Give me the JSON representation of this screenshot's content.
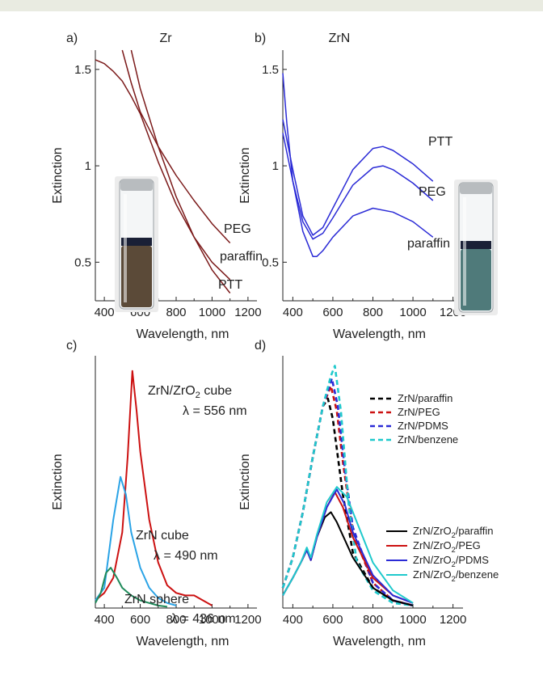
{
  "colors": {
    "frame_top": "#e9ebe1",
    "darkred": "#7b1a1a",
    "blue": "#2b2bd6",
    "red": "#cc1111",
    "lightblue": "#2aa3e6",
    "green": "#1f8a5a",
    "black": "#000000",
    "cyan": "#1fc9cc",
    "vial_brown": "#5b4a38",
    "vial_teal": "#4f7a7a"
  },
  "chart_data": [
    {
      "panel": "a)",
      "type": "line",
      "title": "Zr",
      "xlabel": "Wavelength, nm",
      "ylabel": "Extinction",
      "xlim": [
        350,
        1250
      ],
      "ylim": [
        0.3,
        1.6
      ],
      "xticks": [
        "400",
        "600",
        "800",
        "1000",
        "1200"
      ],
      "xtick_values": [
        400,
        600,
        800,
        1000,
        1200
      ],
      "yticks": [
        "0.5",
        "1",
        "1.5"
      ],
      "ytick_values": [
        0.5,
        1.0,
        1.5
      ],
      "inset": "vial-photo-brown",
      "series": [
        {
          "name": "PEG",
          "color": "#7b1a1a",
          "x": [
            500,
            550,
            600,
            700,
            800,
            900,
            1000,
            1100
          ],
          "y": [
            1.6,
            1.43,
            1.28,
            1.1,
            0.95,
            0.82,
            0.7,
            0.6
          ]
        },
        {
          "name": "paraffin",
          "color": "#7b1a1a",
          "x": [
            350,
            400,
            450,
            500,
            550,
            600,
            700,
            800,
            900,
            1000,
            1100
          ],
          "y": [
            1.55,
            1.53,
            1.49,
            1.44,
            1.36,
            1.27,
            1.02,
            0.8,
            0.63,
            0.5,
            0.41
          ]
        },
        {
          "name": "PTT",
          "color": "#7b1a1a",
          "x": [
            550,
            600,
            700,
            800,
            900,
            1000,
            1100
          ],
          "y": [
            1.6,
            1.4,
            1.1,
            0.84,
            0.63,
            0.46,
            0.34
          ]
        }
      ]
    },
    {
      "panel": "b)",
      "type": "line",
      "title": "ZrN",
      "xlabel": "Wavelength, nm",
      "ylabel": "Extinction",
      "xlim": [
        350,
        1250
      ],
      "ylim": [
        0.3,
        1.6
      ],
      "xticks": [
        "400",
        "600",
        "800",
        "1000",
        "1200"
      ],
      "xtick_values": [
        400,
        600,
        800,
        1000,
        1200
      ],
      "yticks": [
        "0.5",
        "1",
        "1.5"
      ],
      "ytick_values": [
        0.5,
        1.0,
        1.5
      ],
      "inset": "vial-photo-teal",
      "series": [
        {
          "name": "PTT",
          "color": "#2b2bd6",
          "x": [
            350,
            400,
            450,
            500,
            550,
            600,
            700,
            800,
            850,
            900,
            1000,
            1100
          ],
          "y": [
            1.24,
            0.98,
            0.74,
            0.64,
            0.68,
            0.78,
            0.98,
            1.09,
            1.1,
            1.08,
            1.01,
            0.92
          ]
        },
        {
          "name": "PEG",
          "color": "#2b2bd6",
          "x": [
            350,
            400,
            450,
            500,
            550,
            600,
            700,
            800,
            850,
            900,
            1000,
            1100
          ],
          "y": [
            1.17,
            0.92,
            0.71,
            0.62,
            0.65,
            0.73,
            0.9,
            0.99,
            1.0,
            0.98,
            0.91,
            0.82
          ]
        },
        {
          "name": "paraffin",
          "color": "#2b2bd6",
          "x": [
            350,
            370,
            400,
            450,
            500,
            520,
            550,
            600,
            700,
            800,
            900,
            1000,
            1100
          ],
          "y": [
            1.48,
            1.22,
            0.92,
            0.66,
            0.53,
            0.53,
            0.56,
            0.63,
            0.74,
            0.78,
            0.76,
            0.71,
            0.63
          ]
        }
      ]
    },
    {
      "panel": "c)",
      "type": "line",
      "xlabel": "Wavelength, nm",
      "ylabel": "Extinction",
      "xlim": [
        350,
        1250
      ],
      "ylim": [
        0,
        1.0
      ],
      "xticks": [
        "400",
        "600",
        "800",
        "1000",
        "1200"
      ],
      "xtick_values": [
        400,
        600,
        800,
        1000,
        1200
      ],
      "annotations": [
        {
          "text": "ZrN/ZrO",
          "sub": "2",
          "after": " cube"
        },
        {
          "text": "λ = 556 nm"
        },
        {
          "text": "ZrN cube"
        },
        {
          "text": "λ = 490 nm"
        },
        {
          "text": "ZrN sphere"
        },
        {
          "text": "λ = 436 nm"
        }
      ],
      "series": [
        {
          "color": "#cc1111",
          "x": [
            350,
            400,
            450,
            500,
            530,
            556,
            580,
            600,
            650,
            700,
            750,
            800,
            850,
            900,
            950,
            1000
          ],
          "y": [
            0.03,
            0.06,
            0.12,
            0.3,
            0.6,
            0.94,
            0.78,
            0.62,
            0.35,
            0.18,
            0.09,
            0.06,
            0.05,
            0.05,
            0.03,
            0.01
          ]
        },
        {
          "color": "#2aa3e6",
          "x": [
            350,
            400,
            450,
            490,
            520,
            550,
            600,
            650,
            700,
            750,
            800
          ],
          "y": [
            0.03,
            0.08,
            0.35,
            0.52,
            0.45,
            0.3,
            0.16,
            0.08,
            0.04,
            0.02,
            0.01
          ]
        },
        {
          "color": "#1f8a5a",
          "x": [
            350,
            380,
            410,
            436,
            470,
            500,
            550,
            600,
            650,
            700,
            750
          ],
          "y": [
            0.02,
            0.06,
            0.14,
            0.16,
            0.12,
            0.08,
            0.05,
            0.03,
            0.02,
            0.01,
            0.005
          ]
        }
      ]
    },
    {
      "panel": "d)",
      "type": "line",
      "xlabel": "Wavelength, nm",
      "ylabel": "Extinction",
      "xlim": [
        350,
        1250
      ],
      "ylim": [
        0,
        1.0
      ],
      "xticks": [
        "400",
        "600",
        "800",
        "1000",
        "1200"
      ],
      "xtick_values": [
        400,
        600,
        800,
        1000,
        1200
      ],
      "legend_dashed": [
        "ZrN/paraffin",
        "ZrN/PEG",
        "ZrN/PDMS",
        "ZrN/benzene"
      ],
      "legend_solid": [
        {
          "pre": "ZrN/ZrO",
          "sub": "2",
          "post": "/paraffin"
        },
        {
          "pre": "ZrN/ZrO",
          "sub": "2",
          "post": "/PEG"
        },
        {
          "pre": "ZrN/ZrO",
          "sub": "2",
          "post": "/PDMS"
        },
        {
          "pre": "ZrN/ZrO",
          "sub": "2",
          "post": "/benzene"
        }
      ],
      "series": [
        {
          "name": "ZrN/paraffin",
          "style": "dashed",
          "color": "#000000",
          "x": [
            350,
            400,
            450,
            500,
            550,
            575,
            600,
            650,
            700,
            800,
            900,
            1000
          ],
          "y": [
            0.08,
            0.2,
            0.38,
            0.6,
            0.8,
            0.83,
            0.75,
            0.45,
            0.22,
            0.08,
            0.03,
            0.01
          ]
        },
        {
          "name": "ZrN/PEG",
          "style": "dashed",
          "color": "#cc1111",
          "x": [
            350,
            400,
            450,
            500,
            550,
            590,
            620,
            650,
            700,
            800,
            900,
            1000
          ],
          "y": [
            0.08,
            0.2,
            0.38,
            0.6,
            0.8,
            0.88,
            0.78,
            0.58,
            0.3,
            0.1,
            0.03,
            0.01
          ]
        },
        {
          "name": "ZrN/PDMS",
          "style": "dashed",
          "color": "#2b2bd6",
          "x": [
            350,
            400,
            450,
            500,
            550,
            595,
            625,
            660,
            700,
            800,
            900,
            1000
          ],
          "y": [
            0.08,
            0.2,
            0.38,
            0.6,
            0.8,
            0.91,
            0.8,
            0.55,
            0.32,
            0.1,
            0.03,
            0.01
          ]
        },
        {
          "name": "ZrN/benzene",
          "style": "dashed",
          "color": "#1fc9cc",
          "x": [
            350,
            400,
            450,
            500,
            550,
            590,
            610,
            640,
            680,
            720,
            800,
            900,
            1000
          ],
          "y": [
            0.08,
            0.2,
            0.38,
            0.6,
            0.8,
            0.92,
            0.96,
            0.78,
            0.4,
            0.18,
            0.07,
            0.02,
            0.01
          ]
        },
        {
          "name": "ZrN/ZrO2/paraffin",
          "style": "solid",
          "color": "#000000",
          "x": [
            350,
            400,
            440,
            470,
            490,
            520,
            560,
            590,
            620,
            700,
            800,
            900,
            1000
          ],
          "y": [
            0.05,
            0.12,
            0.18,
            0.23,
            0.19,
            0.28,
            0.36,
            0.38,
            0.34,
            0.2,
            0.08,
            0.03,
            0.01
          ]
        },
        {
          "name": "ZrN/ZrO2/PEG",
          "style": "solid",
          "color": "#cc1111",
          "x": [
            350,
            400,
            440,
            470,
            490,
            520,
            570,
            610,
            650,
            700,
            800,
            900,
            1000
          ],
          "y": [
            0.05,
            0.12,
            0.18,
            0.23,
            0.19,
            0.28,
            0.4,
            0.46,
            0.4,
            0.28,
            0.12,
            0.05,
            0.02
          ]
        },
        {
          "name": "ZrN/ZrO2/PDMS",
          "style": "solid",
          "color": "#2b2bd6",
          "x": [
            350,
            400,
            440,
            470,
            490,
            520,
            570,
            620,
            660,
            700,
            800,
            900,
            1000
          ],
          "y": [
            0.05,
            0.12,
            0.18,
            0.23,
            0.19,
            0.28,
            0.4,
            0.47,
            0.41,
            0.3,
            0.13,
            0.05,
            0.02
          ]
        },
        {
          "name": "ZrN/ZrO2/benzene",
          "style": "solid",
          "color": "#1fc9cc",
          "x": [
            350,
            400,
            440,
            470,
            490,
            520,
            570,
            620,
            670,
            720,
            800,
            900,
            1000
          ],
          "y": [
            0.05,
            0.12,
            0.18,
            0.24,
            0.2,
            0.29,
            0.42,
            0.48,
            0.44,
            0.34,
            0.18,
            0.07,
            0.02
          ]
        }
      ]
    }
  ]
}
